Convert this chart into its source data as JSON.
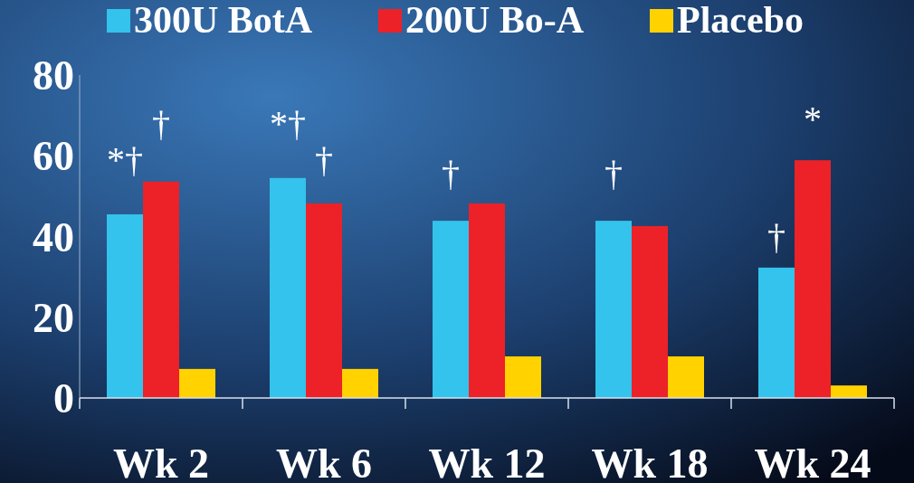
{
  "chart_data": {
    "type": "bar",
    "categories": [
      "Wk 2",
      "Wk 6",
      "Wk 12",
      "Wk 18",
      "Wk 24"
    ],
    "series": [
      {
        "name": "300U BotA",
        "color": "#33c3ec",
        "values": [
          45.5,
          54.5,
          43.9,
          43.9,
          32.3
        ]
      },
      {
        "name": "200U Bo-A",
        "color": "#ec2228",
        "values": [
          53.6,
          48.2,
          48.2,
          42.6,
          58.9
        ]
      },
      {
        "name": "Placebo",
        "color": "#ffd200",
        "values": [
          7.2,
          7.2,
          10.3,
          10.3,
          3.1
        ]
      }
    ],
    "ylim": [
      0,
      80
    ],
    "yticks": [
      0,
      20,
      40,
      60,
      80
    ],
    "legend": "top",
    "annotations": [
      "*†",
      "†",
      "*†",
      "†",
      "†",
      "†",
      "†",
      "*"
    ]
  }
}
